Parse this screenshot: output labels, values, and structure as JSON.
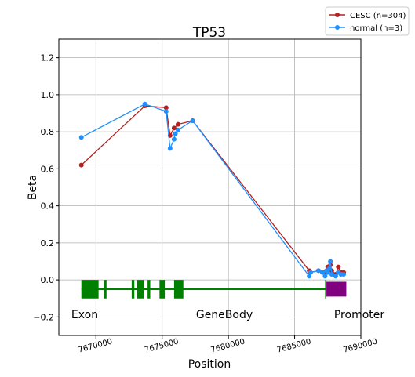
{
  "chart_data": {
    "type": "line",
    "title": "TP53",
    "xlabel": "Position",
    "ylabel": "Beta",
    "xlim": [
      7667200,
      7690000
    ],
    "ylim": [
      -0.3,
      1.3
    ],
    "x_ticks": [
      7670000,
      7675000,
      7680000,
      7685000,
      7690000
    ],
    "x_tick_labels": [
      "7670000",
      "7675000",
      "7680000",
      "7685000",
      "7690000"
    ],
    "y_ticks": [
      -0.2,
      0.0,
      0.2,
      0.4,
      0.6,
      0.8,
      1.0,
      1.2
    ],
    "y_tick_labels": [
      "−0.2",
      "0.0",
      "0.2",
      "0.4",
      "0.6",
      "0.8",
      "1.0",
      "1.2"
    ],
    "grid": true,
    "legend_position": "top-right-outside",
    "series": [
      {
        "name": "CESC (n=304)",
        "color": "#b22222",
        "points": [
          [
            7668900,
            0.62
          ],
          [
            7673700,
            0.94
          ],
          [
            7675300,
            0.93
          ],
          [
            7675600,
            0.78
          ],
          [
            7675900,
            0.82
          ],
          [
            7676200,
            0.84
          ],
          [
            7677300,
            0.86
          ],
          [
            7686100,
            0.05
          ],
          [
            7686200,
            0.04
          ],
          [
            7686800,
            0.05
          ],
          [
            7687100,
            0.04
          ],
          [
            7687300,
            0.04
          ],
          [
            7687500,
            0.07
          ],
          [
            7687700,
            0.08
          ],
          [
            7687800,
            0.05
          ],
          [
            7688100,
            0.03
          ],
          [
            7688300,
            0.07
          ],
          [
            7688500,
            0.04
          ],
          [
            7688700,
            0.04
          ]
        ]
      },
      {
        "name": "normal (n=3)",
        "color": "#1e90ff",
        "points": [
          [
            7668900,
            0.77
          ],
          [
            7673700,
            0.95
          ],
          [
            7675300,
            0.91
          ],
          [
            7675600,
            0.71
          ],
          [
            7675900,
            0.76
          ],
          [
            7676000,
            0.79
          ],
          [
            7676200,
            0.81
          ],
          [
            7677300,
            0.86
          ],
          [
            7686100,
            0.02
          ],
          [
            7686200,
            0.04
          ],
          [
            7686800,
            0.05
          ],
          [
            7687100,
            0.04
          ],
          [
            7687300,
            0.02
          ],
          [
            7687400,
            0.05
          ],
          [
            7687500,
            0.04
          ],
          [
            7687600,
            0.06
          ],
          [
            7687700,
            0.1
          ],
          [
            7687800,
            0.03
          ],
          [
            7688100,
            0.02
          ],
          [
            7688300,
            0.04
          ],
          [
            7688500,
            0.03
          ],
          [
            7688700,
            0.03
          ]
        ]
      }
    ],
    "gene_track": {
      "line_color": "#008000",
      "promoter_color": "#800080",
      "backbone": [
        7668900,
        7687400
      ],
      "exons": [
        [
          7668900,
          7670200
        ],
        [
          7670600,
          7670800
        ],
        [
          7672700,
          7672900
        ],
        [
          7673100,
          7673600
        ],
        [
          7673900,
          7674100
        ],
        [
          7674800,
          7675200
        ],
        [
          7675900,
          7676600
        ],
        [
          7687300,
          7687400
        ]
      ],
      "promoter": [
        7687400,
        7688900
      ],
      "labels": [
        "Exon",
        "GeneBody",
        "Promoter"
      ]
    }
  }
}
